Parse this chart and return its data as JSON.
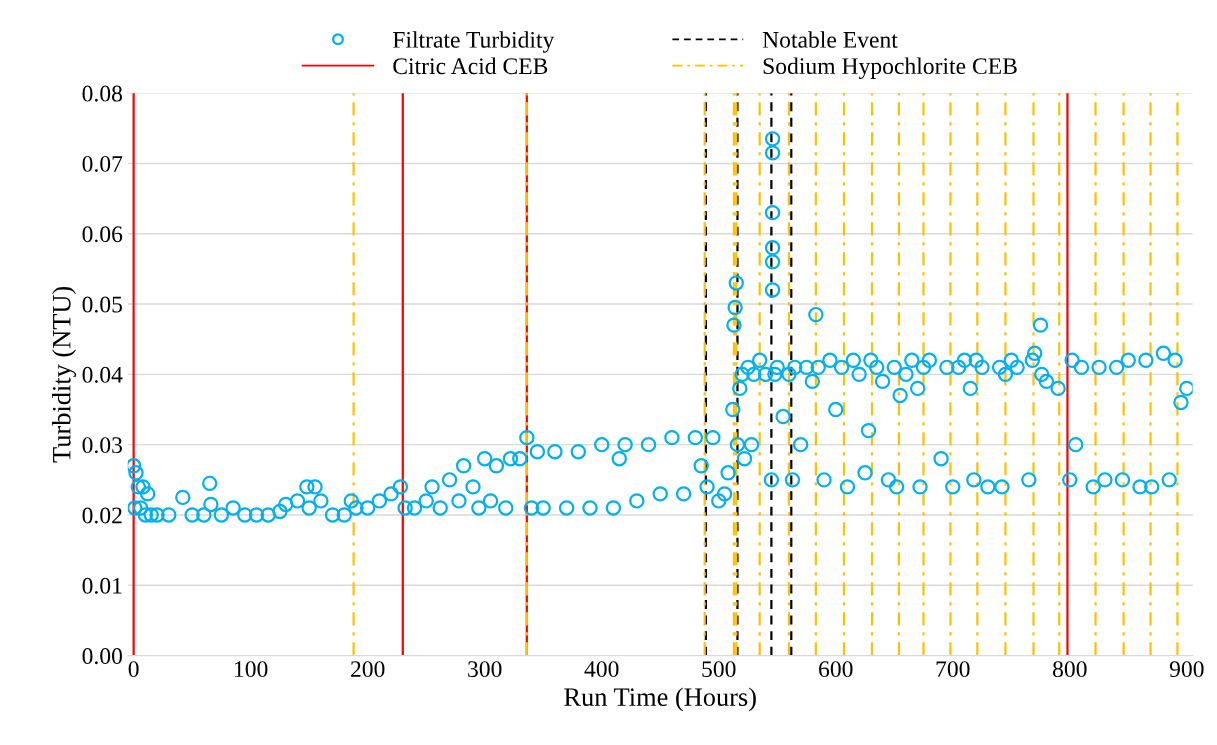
{
  "chart_data": {
    "type": "scatter",
    "xlabel": "Run Time (Hours)",
    "ylabel": "Turbidity (NTU)",
    "xlim": [
      -5,
      905
    ],
    "ylim": [
      0,
      0.08
    ],
    "xticks": [
      0,
      100,
      200,
      300,
      400,
      500,
      600,
      700,
      800,
      900
    ],
    "yticks": [
      {
        "value": 0,
        "label": "0.00"
      },
      {
        "value": 0.01,
        "label": "0.01"
      },
      {
        "value": 0.02,
        "label": "0.02"
      },
      {
        "value": 0.03,
        "label": "0.03"
      },
      {
        "value": 0.04,
        "label": "0.04"
      },
      {
        "value": 0.05,
        "label": "0.05"
      },
      {
        "value": 0.06,
        "label": "0.06"
      },
      {
        "value": 0.07,
        "label": "0.07"
      },
      {
        "value": 0.08,
        "label": "0.08"
      }
    ],
    "grid": "y",
    "legend": "top",
    "marker": "circle",
    "series": [
      {
        "name": "Filtrate Turbidity",
        "color": "#00b0f0",
        "x": [
          0,
          1,
          2,
          4,
          6,
          8,
          10,
          12,
          15,
          20,
          30,
          42,
          50,
          60,
          65,
          66,
          75,
          85,
          95,
          105,
          115,
          125,
          130,
          140,
          148,
          150,
          155,
          160,
          170,
          180,
          186,
          190,
          200,
          210,
          220,
          228,
          232,
          240,
          250,
          255,
          262,
          270,
          278,
          282,
          290,
          295,
          300,
          305,
          310,
          318,
          322,
          330,
          336,
          340,
          345,
          350,
          360,
          370,
          380,
          390,
          400,
          410,
          415,
          420,
          430,
          440,
          450,
          460,
          470,
          480,
          485,
          490,
          495,
          500,
          505,
          508,
          512,
          513,
          514,
          515,
          516,
          518,
          520,
          522,
          525,
          528,
          530,
          535,
          540,
          545,
          546,
          546,
          546,
          546,
          546,
          546,
          548,
          550,
          555,
          560,
          563,
          565,
          570,
          575,
          580,
          583,
          585,
          590,
          595,
          600,
          605,
          610,
          615,
          620,
          625,
          628,
          630,
          635,
          640,
          645,
          650,
          652,
          655,
          660,
          665,
          670,
          672,
          675,
          680,
          690,
          695,
          700,
          705,
          710,
          715,
          718,
          720,
          725,
          730,
          740,
          742,
          745,
          750,
          755,
          765,
          768,
          770,
          775,
          776,
          780,
          790,
          800,
          802,
          805,
          810,
          820,
          825,
          830,
          840,
          845,
          850,
          860,
          865,
          870,
          880,
          885,
          890,
          895,
          900
        ],
        "values": [
          0.027,
          0.021,
          0.026,
          0.024,
          0.021,
          0.024,
          0.02,
          0.023,
          0.02,
          0.02,
          0.02,
          0.0225,
          0.02,
          0.02,
          0.0245,
          0.0215,
          0.02,
          0.021,
          0.02,
          0.02,
          0.02,
          0.0205,
          0.0215,
          0.022,
          0.024,
          0.021,
          0.024,
          0.022,
          0.02,
          0.02,
          0.022,
          0.021,
          0.021,
          0.022,
          0.023,
          0.024,
          0.021,
          0.021,
          0.022,
          0.024,
          0.021,
          0.025,
          0.022,
          0.027,
          0.024,
          0.021,
          0.028,
          0.022,
          0.027,
          0.021,
          0.028,
          0.028,
          0.031,
          0.021,
          0.029,
          0.021,
          0.029,
          0.021,
          0.029,
          0.021,
          0.03,
          0.021,
          0.028,
          0.03,
          0.022,
          0.03,
          0.023,
          0.031,
          0.023,
          0.031,
          0.027,
          0.024,
          0.031,
          0.022,
          0.023,
          0.026,
          0.035,
          0.047,
          0.0495,
          0.053,
          0.03,
          0.038,
          0.04,
          0.028,
          0.041,
          0.03,
          0.04,
          0.042,
          0.04,
          0.025,
          0.052,
          0.056,
          0.058,
          0.063,
          0.0715,
          0.0735,
          0.04,
          0.041,
          0.034,
          0.04,
          0.025,
          0.041,
          0.03,
          0.041,
          0.039,
          0.0485,
          0.041,
          0.025,
          0.042,
          0.035,
          0.041,
          0.024,
          0.042,
          0.04,
          0.026,
          0.032,
          0.042,
          0.041,
          0.039,
          0.025,
          0.041,
          0.024,
          0.037,
          0.04,
          0.042,
          0.038,
          0.024,
          0.041,
          0.042,
          0.028,
          0.041,
          0.024,
          0.041,
          0.042,
          0.038,
          0.025,
          0.042,
          0.041,
          0.024,
          0.041,
          0.024,
          0.04,
          0.042,
          0.041,
          0.025,
          0.042,
          0.043,
          0.047,
          0.04,
          0.039,
          0.038,
          0.025,
          0.042,
          0.03,
          0.041,
          0.024,
          0.041,
          0.025,
          0.041,
          0.025,
          0.042,
          0.024,
          0.042,
          0.024,
          0.043,
          0.025,
          0.042,
          0.036,
          0.038
        ]
      }
    ],
    "ref_lines": [
      {
        "axis": "x",
        "value": 0,
        "label": "Citric Acid CEB",
        "color": "#ff0000",
        "line_style": "solid"
      },
      {
        "axis": "x",
        "value": 230,
        "color": "#ff0000",
        "line_style": "solid"
      },
      {
        "axis": "x",
        "value": 336,
        "color": "#ff0000",
        "line_style": "solid"
      },
      {
        "axis": "x",
        "value": 798,
        "color": "#ff0000",
        "line_style": "solid"
      },
      {
        "axis": "x",
        "value": 489,
        "label": "Notable Event",
        "color": "#000000",
        "line_style": "dashed"
      },
      {
        "axis": "x",
        "value": 516,
        "color": "#000000",
        "line_style": "dashed"
      },
      {
        "axis": "x",
        "value": 545,
        "color": "#000000",
        "line_style": "dashed"
      },
      {
        "axis": "x",
        "value": 562,
        "color": "#000000",
        "line_style": "dashed"
      },
      {
        "axis": "x",
        "value": 188,
        "label": "Sodium Hypochlorite CEB",
        "color": "#ffc000",
        "line_style": "dashdot"
      },
      {
        "axis": "x",
        "value": 336,
        "color": "#ffc000",
        "line_style": "dashdot"
      },
      {
        "axis": "x",
        "value": 488,
        "color": "#ffc000",
        "line_style": "dashdot"
      },
      {
        "axis": "x",
        "value": 513,
        "color": "#ffc000",
        "line_style": "dashdot"
      },
      {
        "axis": "x",
        "value": 515,
        "color": "#ffc000",
        "line_style": "dashdot"
      },
      {
        "axis": "x",
        "value": 535,
        "color": "#ffc000",
        "line_style": "dashdot"
      },
      {
        "axis": "x",
        "value": 560,
        "color": "#ffc000",
        "line_style": "dashdot"
      },
      {
        "axis": "x",
        "value": 583,
        "color": "#ffc000",
        "line_style": "dashdot"
      },
      {
        "axis": "x",
        "value": 607,
        "color": "#ffc000",
        "line_style": "dashdot"
      },
      {
        "axis": "x",
        "value": 631,
        "color": "#ffc000",
        "line_style": "dashdot"
      },
      {
        "axis": "x",
        "value": 654,
        "color": "#ffc000",
        "line_style": "dashdot"
      },
      {
        "axis": "x",
        "value": 675,
        "color": "#ffc000",
        "line_style": "dashdot"
      },
      {
        "axis": "x",
        "value": 698,
        "color": "#ffc000",
        "line_style": "dashdot"
      },
      {
        "axis": "x",
        "value": 721,
        "color": "#ffc000",
        "line_style": "dashdot"
      },
      {
        "axis": "x",
        "value": 745,
        "color": "#ffc000",
        "line_style": "dashdot"
      },
      {
        "axis": "x",
        "value": 769,
        "color": "#ffc000",
        "line_style": "dashdot"
      },
      {
        "axis": "x",
        "value": 791,
        "color": "#ffc000",
        "line_style": "dashdot"
      },
      {
        "axis": "x",
        "value": 822,
        "color": "#ffc000",
        "line_style": "dashdot"
      },
      {
        "axis": "x",
        "value": 846,
        "color": "#ffc000",
        "line_style": "dashdot"
      },
      {
        "axis": "x",
        "value": 869,
        "color": "#ffc000",
        "line_style": "dashdot"
      },
      {
        "axis": "x",
        "value": 892,
        "color": "#ffc000",
        "line_style": "dashdot"
      }
    ]
  }
}
